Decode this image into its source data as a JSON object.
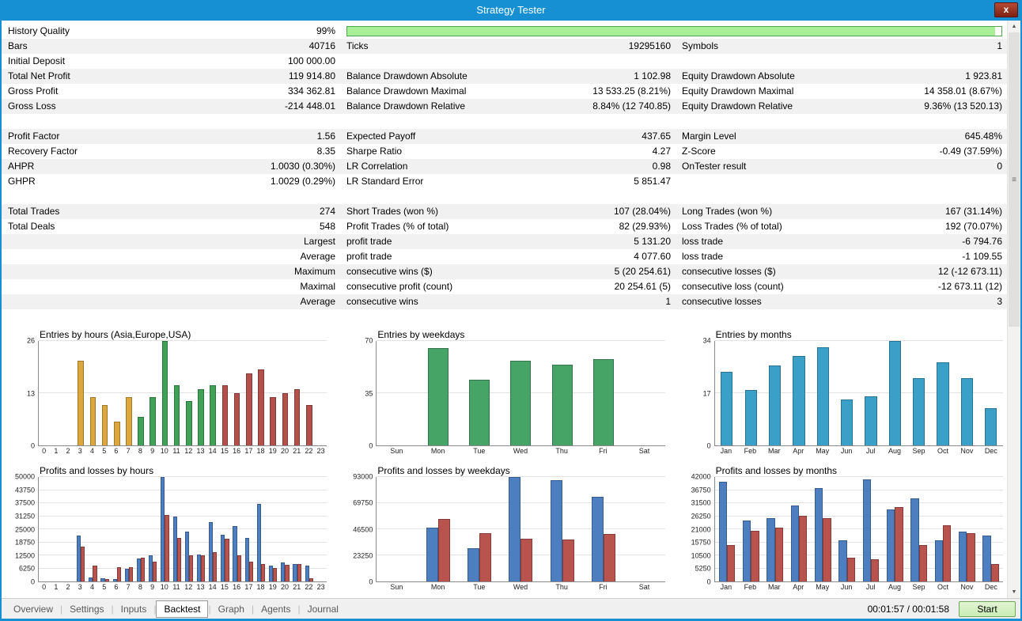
{
  "window": {
    "title": "Strategy Tester"
  },
  "icons": {
    "close": "x",
    "scroll_up": "▲",
    "scroll_down": "▼",
    "scroll_grip": "≡"
  },
  "colors": {
    "titlebar": "#1690D2",
    "shade": "#F1F1F1",
    "progress_fill": "#A9EF98",
    "progress_border": "#4DA64D",
    "start_bg": "#C9ECB4",
    "start_border": "#6FA657"
  },
  "progress": {
    "fill_pct": 99
  },
  "table": {
    "rows": [
      {
        "c": [
          "History Quality",
          "99%",
          "",
          "",
          "",
          ""
        ],
        "shade": false,
        "progress": true
      },
      {
        "c": [
          "Bars",
          "40716",
          "Ticks",
          "19295160",
          "Symbols",
          "1"
        ],
        "shade": true
      },
      {
        "c": [
          "Initial Deposit",
          "100 000.00",
          "",
          "",
          "",
          ""
        ],
        "shade": false
      },
      {
        "c": [
          "Total Net Profit",
          "119 914.80",
          "Balance Drawdown Absolute",
          "1 102.98",
          "Equity Drawdown Absolute",
          "1 923.81"
        ],
        "shade": true
      },
      {
        "c": [
          "Gross Profit",
          "334 362.81",
          "Balance Drawdown Maximal",
          "13 533.25 (8.21%)",
          "Equity Drawdown Maximal",
          "14 358.01 (8.67%)"
        ],
        "shade": false
      },
      {
        "c": [
          "Gross Loss",
          "-214 448.01",
          "Balance Drawdown Relative",
          "8.84% (12 740.85)",
          "Equity Drawdown Relative",
          "9.36% (13 520.13)"
        ],
        "shade": true
      },
      {
        "c": [
          "",
          "",
          "",
          "",
          "",
          ""
        ],
        "shade": false
      },
      {
        "c": [
          "Profit Factor",
          "1.56",
          "Expected Payoff",
          "437.65",
          "Margin Level",
          "645.48%"
        ],
        "shade": true
      },
      {
        "c": [
          "Recovery Factor",
          "8.35",
          "Sharpe Ratio",
          "4.27",
          "Z-Score",
          "-0.49 (37.59%)"
        ],
        "shade": false
      },
      {
        "c": [
          "AHPR",
          "1.0030 (0.30%)",
          "LR Correlation",
          "0.98",
          "OnTester result",
          "0"
        ],
        "shade": true
      },
      {
        "c": [
          "GHPR",
          "1.0029 (0.29%)",
          "LR Standard Error",
          "5 851.47",
          "",
          ""
        ],
        "shade": false
      },
      {
        "c": [
          "",
          "",
          "",
          "",
          "",
          ""
        ],
        "shade": false
      },
      {
        "c": [
          "Total Trades",
          "274",
          "Short Trades (won %)",
          "107 (28.04%)",
          "Long Trades (won %)",
          "167 (31.14%)"
        ],
        "shade": true
      },
      {
        "c": [
          "Total Deals",
          "548",
          "Profit Trades (% of total)",
          "82 (29.93%)",
          "Loss Trades (% of total)",
          "192 (70.07%)"
        ],
        "shade": false
      },
      {
        "c": [
          "",
          "Largest",
          "profit trade",
          "5 131.20",
          "loss trade",
          "-6 794.76"
        ],
        "shade": true
      },
      {
        "c": [
          "",
          "Average",
          "profit trade",
          "4 077.60",
          "loss trade",
          "-1 109.55"
        ],
        "shade": false
      },
      {
        "c": [
          "",
          "Maximum",
          "consecutive wins ($)",
          "5 (20 254.61)",
          "consecutive losses ($)",
          "12 (-12 673.11)"
        ],
        "shade": true
      },
      {
        "c": [
          "",
          "Maximal",
          "consecutive profit (count)",
          "20 254.61 (5)",
          "consecutive loss (count)",
          "-12 673.11 (12)"
        ],
        "shade": false
      },
      {
        "c": [
          "",
          "Average",
          "consecutive wins",
          "1",
          "consecutive losses",
          "3"
        ],
        "shade": true
      }
    ]
  },
  "tabs": {
    "items": [
      {
        "label": "Overview",
        "active": false
      },
      {
        "label": "Settings",
        "active": false
      },
      {
        "label": "Inputs",
        "active": false
      },
      {
        "label": "Backtest",
        "active": true
      },
      {
        "label": "Graph",
        "active": false
      },
      {
        "label": "Agents",
        "active": false
      },
      {
        "label": "Journal",
        "active": false
      }
    ]
  },
  "statusbar": {
    "time": "00:01:57 / 00:01:58",
    "start_label": "Start"
  },
  "chart_data": [
    {
      "type": "bar",
      "key": "entries-by-hours",
      "title": "Entries by hours (Asia,Europe,USA)",
      "categories": [
        "0",
        "1",
        "2",
        "3",
        "4",
        "5",
        "6",
        "7",
        "8",
        "9",
        "10",
        "11",
        "12",
        "13",
        "14",
        "15",
        "16",
        "17",
        "18",
        "19",
        "20",
        "21",
        "22",
        "23"
      ],
      "values": [
        0,
        0,
        0,
        21,
        12,
        10,
        6,
        12,
        7,
        12,
        26,
        15,
        11,
        14,
        15,
        15,
        13,
        18,
        19,
        12,
        13,
        14,
        10,
        0
      ],
      "bar_colors": [
        "#3FA256",
        "#3FA256",
        "#3FA256",
        "#DCA83E",
        "#DCA83E",
        "#DCA83E",
        "#DCA83E",
        "#DCA83E",
        "#3FA256",
        "#3FA256",
        "#3FA256",
        "#3FA256",
        "#3FA256",
        "#3FA256",
        "#3FA256",
        "#B3504C",
        "#B3504C",
        "#B3504C",
        "#B3504C",
        "#B3504C",
        "#B3504C",
        "#B3504C",
        "#B3504C",
        "#B3504C"
      ],
      "ylim": [
        0,
        26
      ],
      "yticks": [
        0,
        13,
        26
      ]
    },
    {
      "type": "bar",
      "key": "entries-by-weekdays",
      "title": "Entries by weekdays",
      "categories": [
        "Sun",
        "Mon",
        "Tue",
        "Wed",
        "Thu",
        "Fri",
        "Sat"
      ],
      "values": [
        0,
        65,
        44,
        57,
        54,
        58,
        0
      ],
      "color": "#46A466",
      "ylim": [
        0,
        70
      ],
      "yticks": [
        0,
        35,
        70
      ]
    },
    {
      "type": "bar",
      "key": "entries-by-months",
      "title": "Entries by months",
      "categories": [
        "Jan",
        "Feb",
        "Mar",
        "Apr",
        "May",
        "Jun",
        "Jul",
        "Aug",
        "Sep",
        "Oct",
        "Nov",
        "Dec"
      ],
      "values": [
        24,
        18,
        26,
        29,
        32,
        15,
        16,
        34,
        22,
        27,
        22,
        12
      ],
      "color": "#3BA0C8",
      "ylim": [
        0,
        34
      ],
      "yticks": [
        0,
        17,
        34
      ]
    },
    {
      "type": "bar",
      "key": "pnl-by-hours",
      "title": "Profits and losses by hours",
      "categories": [
        "0",
        "1",
        "2",
        "3",
        "4",
        "5",
        "6",
        "7",
        "8",
        "9",
        "10",
        "11",
        "12",
        "13",
        "14",
        "15",
        "16",
        "17",
        "18",
        "19",
        "20",
        "21",
        "22",
        "23"
      ],
      "series": [
        {
          "name": "profit",
          "color": "#4D7EBF",
          "values": [
            0,
            0,
            0,
            22000,
            2000,
            1500,
            1000,
            6000,
            11000,
            12500,
            50000,
            31000,
            24000,
            13000,
            28500,
            22500,
            26500,
            21000,
            37000,
            7500,
            9000,
            8500,
            7500,
            0
          ]
        },
        {
          "name": "loss",
          "color": "#B8534E",
          "values": [
            0,
            0,
            0,
            16500,
            7500,
            1000,
            7000,
            7000,
            11500,
            9500,
            32000,
            21000,
            12500,
            12500,
            14000,
            20500,
            12500,
            9500,
            8500,
            6500,
            8000,
            8500,
            1500,
            0
          ]
        }
      ],
      "ylim": [
        0,
        50000
      ],
      "yticks": [
        0,
        6250,
        12500,
        18750,
        25000,
        31250,
        37500,
        43750,
        50000
      ]
    },
    {
      "type": "bar",
      "key": "pnl-by-weekdays",
      "title": "Profits and losses by weekdays",
      "categories": [
        "Sun",
        "Mon",
        "Tue",
        "Wed",
        "Thu",
        "Fri",
        "Sat"
      ],
      "series": [
        {
          "name": "profit",
          "color": "#4D7EBF",
          "values": [
            0,
            48000,
            29500,
            93000,
            90000,
            75500,
            0
          ]
        },
        {
          "name": "loss",
          "color": "#B8534E",
          "values": [
            0,
            56000,
            43000,
            38000,
            37500,
            42500,
            0
          ]
        }
      ],
      "ylim": [
        0,
        93000
      ],
      "yticks": [
        0,
        23250,
        46500,
        69750,
        93000
      ]
    },
    {
      "type": "bar",
      "key": "pnl-by-months",
      "title": "Profits and losses by months",
      "categories": [
        "Jan",
        "Feb",
        "Mar",
        "Apr",
        "May",
        "Jun",
        "Jul",
        "Aug",
        "Sep",
        "Oct",
        "Nov",
        "Dec"
      ],
      "series": [
        {
          "name": "profit",
          "color": "#4D7EBF",
          "values": [
            40000,
            24500,
            25500,
            30500,
            37500,
            16500,
            41000,
            29000,
            33500,
            16500,
            20000,
            18500
          ]
        },
        {
          "name": "loss",
          "color": "#B8534E",
          "values": [
            14500,
            20500,
            21500,
            26500,
            25500,
            9500,
            9000,
            30000,
            14500,
            22500,
            19500,
            7000
          ]
        }
      ],
      "ylim": [
        0,
        42000
      ],
      "yticks": [
        0,
        5250,
        10500,
        15750,
        21000,
        26250,
        31500,
        36750,
        42000
      ]
    }
  ]
}
